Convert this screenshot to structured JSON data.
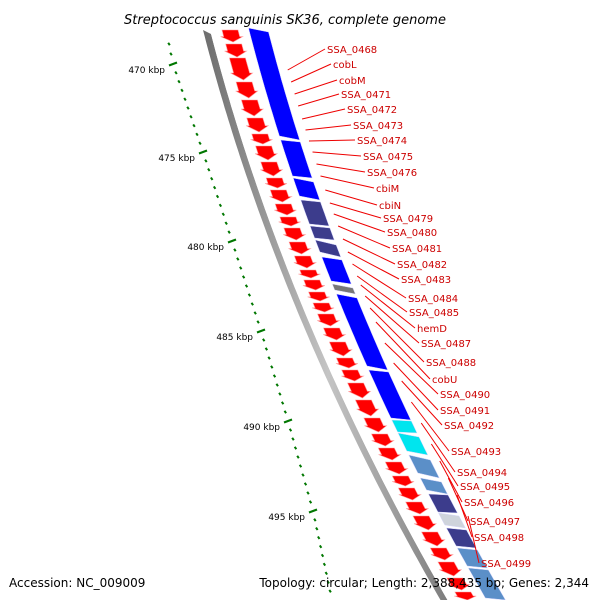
{
  "title": "Streptococcus sanguinis SK36, complete genome",
  "footer": {
    "accession": "Accession: NC_009009",
    "topology": "Topology: circular; Length: 2,388,435 bp; Genes: 2,344"
  },
  "axis_labels": [
    "470 kbp",
    "475 kbp",
    "480 kbp",
    "485 kbp",
    "490 kbp",
    "495 kbp"
  ],
  "genes": [
    "SSA_0468",
    "cobL",
    "cobM",
    "SSA_0471",
    "SSA_0472",
    "SSA_0473",
    "SSA_0474",
    "SSA_0475",
    "SSA_0476",
    "cbiM",
    "cbiN",
    "SSA_0479",
    "SSA_0480",
    "SSA_0481",
    "SSA_0482",
    "SSA_0483",
    "SSA_0484",
    "SSA_0485",
    "hemD",
    "SSA_0487",
    "SSA_0488",
    "cobU",
    "SSA_0490",
    "SSA_0491",
    "SSA_0492",
    "SSA_0493",
    "SSA_0494",
    "SSA_0495",
    "SSA_0496",
    "SSA_0497",
    "SSA_0498",
    "SSA_0499"
  ],
  "colors": {
    "forward_gene": "#ff0000",
    "label_text": "#cc0000",
    "leader_line": "#ee0000",
    "backbone": "#9a9a9a",
    "tick": "#007700",
    "axis_text": "#000000",
    "cog_blue": "#0000ff",
    "cog_navy": "#3c3c8c",
    "cog_cyan": "#00e5ee",
    "cog_steel": "#5b8fc8",
    "cog_gray": "#777777"
  }
}
